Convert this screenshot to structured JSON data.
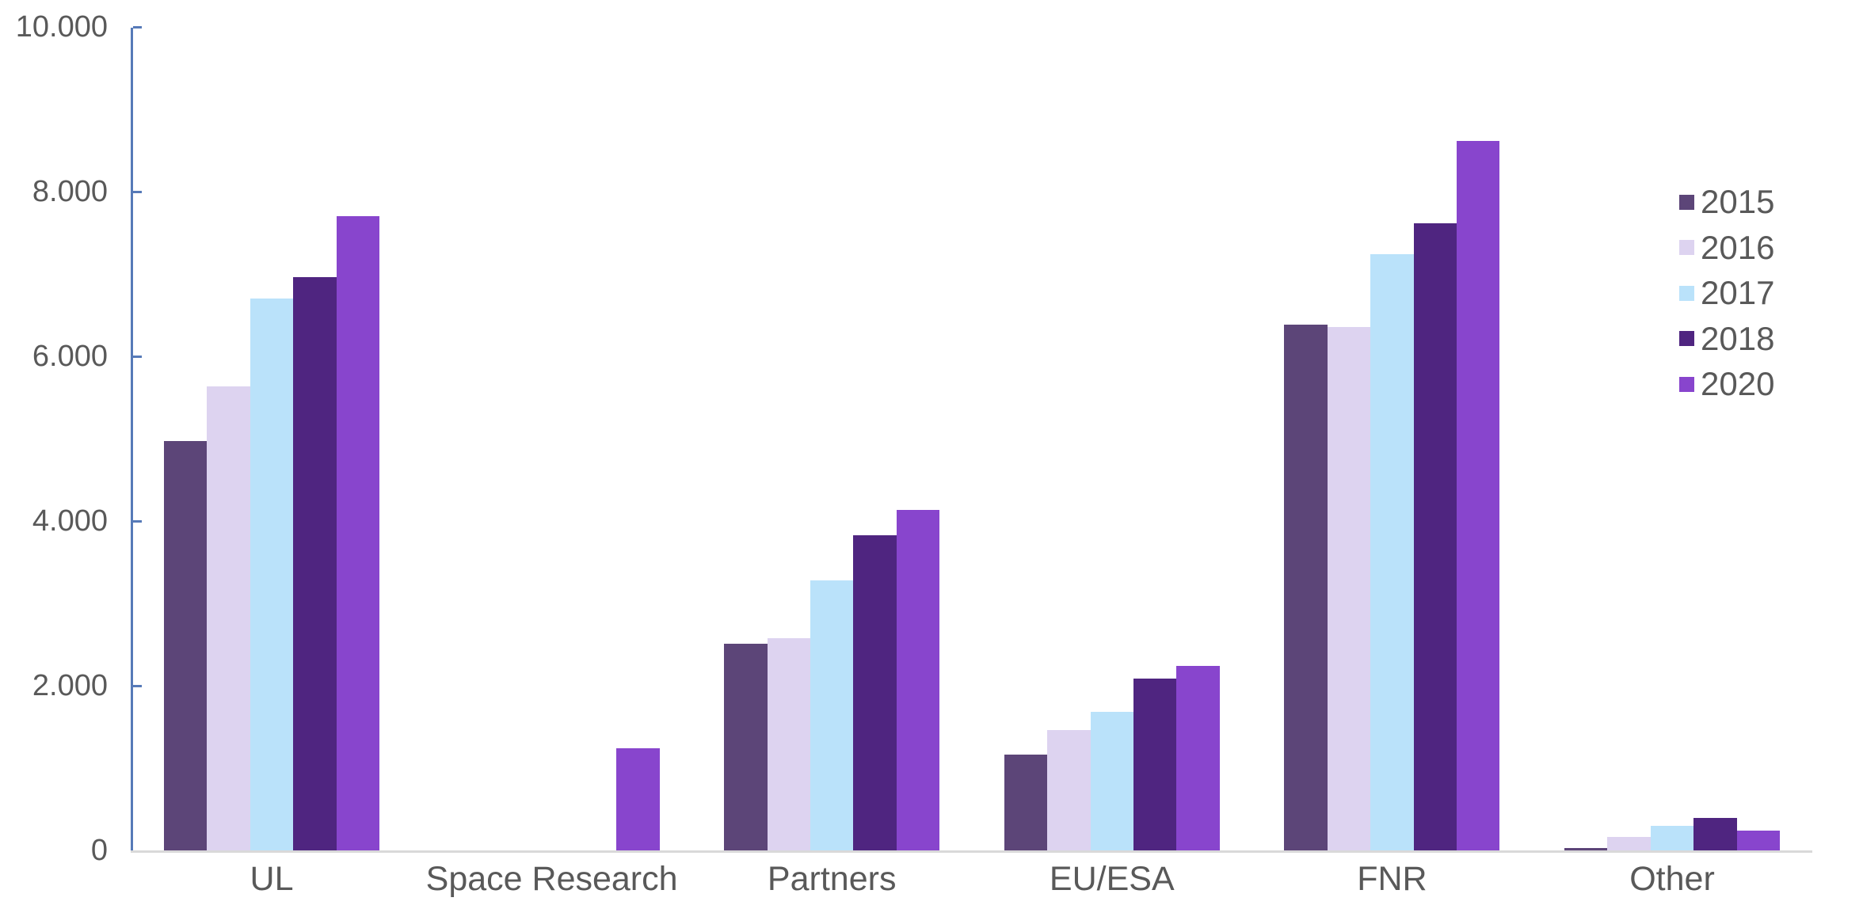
{
  "chart_data": {
    "type": "bar",
    "title": "",
    "xlabel": "",
    "ylabel": "",
    "categories": [
      "UL",
      "Space Research",
      "Partners",
      "EU/ESA",
      "FNR",
      "Other"
    ],
    "series": [
      {
        "name": "2015",
        "color": "#5C4578",
        "values": [
          4970,
          0,
          2510,
          1160,
          6380,
          30
        ]
      },
      {
        "name": "2016",
        "color": "#DDD3F0",
        "values": [
          5630,
          0,
          2580,
          1460,
          6360,
          160
        ]
      },
      {
        "name": "2017",
        "color": "#BAE2FA",
        "values": [
          6700,
          0,
          3280,
          1680,
          7240,
          300
        ]
      },
      {
        "name": "2018",
        "color": "#4F2580",
        "values": [
          6960,
          0,
          3830,
          2090,
          7620,
          390
        ]
      },
      {
        "name": "2020",
        "color": "#8845CD",
        "values": [
          7700,
          1240,
          4130,
          2240,
          8620,
          240
        ]
      }
    ],
    "ylim": [
      0,
      10000
    ],
    "ytick_interval": 2000,
    "ytick_labels": [
      "0",
      "2.000",
      "4.000",
      "6.000",
      "8.000",
      "10.000"
    ],
    "grid": false,
    "legend_position": "right",
    "colors": {
      "axis_line": "#567AB8",
      "baseline": "#D9D9D9",
      "text": "#595959"
    }
  }
}
